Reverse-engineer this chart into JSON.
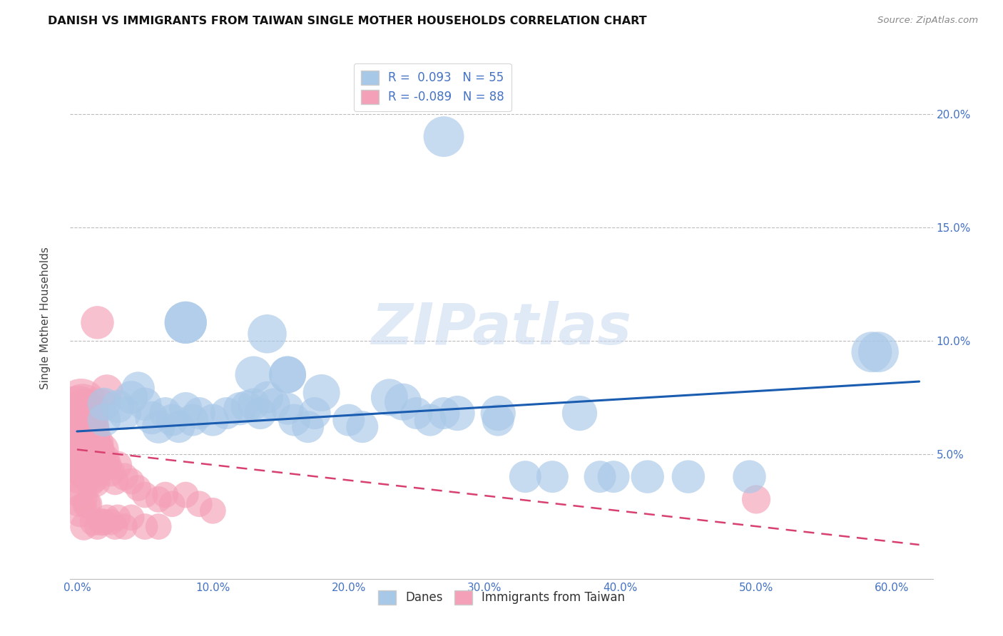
{
  "title": "DANISH VS IMMIGRANTS FROM TAIWAN SINGLE MOTHER HOUSEHOLDS CORRELATION CHART",
  "source": "Source: ZipAtlas.com",
  "ylabel": "Single Mother Households",
  "watermark": "ZIPatlas",
  "legend_danes": "Danes",
  "legend_taiwan": "Immigrants from Taiwan",
  "R_danes": 0.093,
  "N_danes": 55,
  "R_taiwan": -0.089,
  "N_taiwan": 88,
  "xlim": [
    -0.005,
    0.63
  ],
  "ylim": [
    -0.005,
    0.225
  ],
  "xticks": [
    0.0,
    0.1,
    0.2,
    0.3,
    0.4,
    0.5,
    0.6
  ],
  "xtick_labels": [
    "0.0%",
    "10.0%",
    "20.0%",
    "30.0%",
    "40.0%",
    "50.0%",
    "60.0%"
  ],
  "yticks": [
    0.05,
    0.1,
    0.15,
    0.2
  ],
  "ytick_labels": [
    "5.0%",
    "10.0%",
    "15.0%",
    "20.0%"
  ],
  "color_danes": "#a8c8e8",
  "color_taiwan": "#f4a0b8",
  "line_color_danes": "#1a5cb0",
  "line_color_taiwan": "#d84070",
  "danes_trend_x": [
    0.0,
    0.62
  ],
  "danes_trend_y": [
    0.06,
    0.082
  ],
  "taiwan_trend_x": [
    0.0,
    0.62
  ],
  "taiwan_trend_y": [
    0.052,
    0.01
  ],
  "danes_x": [
    0.27,
    0.08,
    0.08,
    0.14,
    0.155,
    0.155,
    0.13,
    0.18,
    0.23,
    0.24,
    0.28,
    0.31,
    0.37,
    0.42,
    0.45,
    0.495,
    0.585,
    0.02,
    0.02,
    0.03,
    0.035,
    0.04,
    0.045,
    0.05,
    0.055,
    0.06,
    0.065,
    0.07,
    0.075,
    0.08,
    0.085,
    0.09,
    0.1,
    0.11,
    0.12,
    0.125,
    0.13,
    0.135,
    0.14,
    0.145,
    0.155,
    0.16,
    0.17,
    0.175,
    0.2,
    0.21,
    0.25,
    0.26,
    0.27,
    0.31,
    0.33,
    0.35,
    0.385,
    0.395,
    0.59
  ],
  "danes_y": [
    0.19,
    0.108,
    0.108,
    0.103,
    0.085,
    0.085,
    0.085,
    0.077,
    0.075,
    0.073,
    0.068,
    0.068,
    0.068,
    0.04,
    0.04,
    0.04,
    0.095,
    0.072,
    0.065,
    0.071,
    0.068,
    0.075,
    0.079,
    0.072,
    0.066,
    0.062,
    0.068,
    0.065,
    0.062,
    0.07,
    0.065,
    0.068,
    0.065,
    0.068,
    0.07,
    0.071,
    0.072,
    0.068,
    0.075,
    0.072,
    0.07,
    0.065,
    0.062,
    0.068,
    0.065,
    0.062,
    0.068,
    0.065,
    0.068,
    0.065,
    0.04,
    0.04,
    0.04,
    0.04,
    0.095
  ],
  "danes_size": [
    120,
    130,
    130,
    110,
    100,
    100,
    100,
    100,
    100,
    100,
    90,
    90,
    90,
    80,
    80,
    80,
    120,
    80,
    80,
    80,
    80,
    80,
    80,
    80,
    80,
    80,
    75,
    75,
    75,
    80,
    75,
    75,
    75,
    75,
    80,
    75,
    75,
    75,
    75,
    75,
    75,
    75,
    75,
    75,
    75,
    75,
    75,
    75,
    75,
    75,
    75,
    75,
    75,
    75,
    120
  ],
  "taiwan_x": [
    0.001,
    0.001,
    0.001,
    0.002,
    0.002,
    0.002,
    0.002,
    0.003,
    0.003,
    0.003,
    0.003,
    0.004,
    0.004,
    0.004,
    0.004,
    0.005,
    0.005,
    0.005,
    0.005,
    0.006,
    0.006,
    0.006,
    0.007,
    0.007,
    0.007,
    0.008,
    0.008,
    0.008,
    0.009,
    0.009,
    0.01,
    0.01,
    0.011,
    0.011,
    0.012,
    0.012,
    0.013,
    0.013,
    0.014,
    0.014,
    0.015,
    0.015,
    0.016,
    0.017,
    0.018,
    0.019,
    0.02,
    0.022,
    0.025,
    0.028,
    0.03,
    0.035,
    0.04,
    0.045,
    0.05,
    0.06,
    0.065,
    0.07,
    0.08,
    0.09,
    0.1,
    0.02,
    0.022,
    0.025,
    0.028,
    0.03,
    0.035,
    0.04,
    0.05,
    0.06,
    0.015,
    0.018,
    0.022,
    0.008,
    0.012,
    0.015,
    0.018,
    0.01,
    0.007,
    0.005,
    0.002,
    0.003,
    0.001,
    0.001,
    0.002,
    0.004,
    0.006,
    0.5
  ],
  "taiwan_y": [
    0.068,
    0.06,
    0.052,
    0.065,
    0.058,
    0.05,
    0.045,
    0.072,
    0.062,
    0.055,
    0.048,
    0.07,
    0.06,
    0.052,
    0.045,
    0.068,
    0.058,
    0.05,
    0.042,
    0.065,
    0.055,
    0.048,
    0.062,
    0.052,
    0.045,
    0.06,
    0.05,
    0.043,
    0.058,
    0.048,
    0.055,
    0.045,
    0.052,
    0.042,
    0.05,
    0.04,
    0.048,
    0.038,
    0.055,
    0.045,
    0.052,
    0.042,
    0.05,
    0.048,
    0.045,
    0.052,
    0.048,
    0.045,
    0.042,
    0.038,
    0.045,
    0.04,
    0.038,
    0.035,
    0.032,
    0.03,
    0.032,
    0.028,
    0.032,
    0.028,
    0.025,
    0.02,
    0.022,
    0.02,
    0.018,
    0.022,
    0.018,
    0.022,
    0.018,
    0.018,
    0.108,
    0.072,
    0.078,
    0.028,
    0.02,
    0.018,
    0.02,
    0.038,
    0.028,
    0.018,
    0.03,
    0.025,
    0.035,
    0.042,
    0.048,
    0.05,
    0.062,
    0.03
  ],
  "taiwan_size": [
    220,
    180,
    150,
    200,
    170,
    140,
    120,
    190,
    160,
    130,
    110,
    180,
    150,
    120,
    100,
    170,
    140,
    110,
    90,
    160,
    130,
    100,
    150,
    120,
    90,
    140,
    110,
    85,
    130,
    100,
    120,
    90,
    110,
    85,
    100,
    80,
    95,
    75,
    90,
    70,
    85,
    65,
    80,
    75,
    70,
    75,
    70,
    65,
    60,
    55,
    60,
    55,
    50,
    50,
    50,
    50,
    50,
    50,
    50,
    50,
    50,
    50,
    50,
    50,
    50,
    50,
    50,
    50,
    50,
    50,
    80,
    70,
    75,
    60,
    55,
    50,
    55,
    65,
    60,
    55,
    90,
    80,
    100,
    130,
    110,
    90,
    80,
    60
  ]
}
